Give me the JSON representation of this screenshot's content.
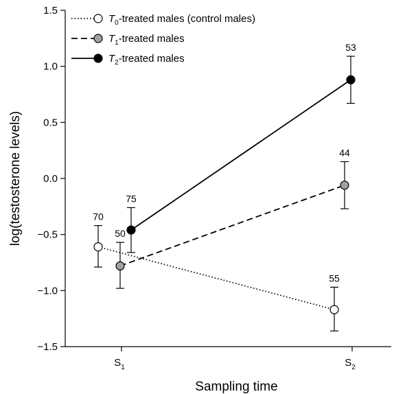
{
  "chart_data": {
    "type": "line",
    "title": "",
    "xlabel": "Sampling time",
    "ylabel": "log(testosterone levels)",
    "ylim": [
      -1.5,
      1.5
    ],
    "yticks": [
      1.5,
      1.0,
      0.5,
      0.0,
      -0.5,
      -1.0,
      -1.5
    ],
    "ytick_labels": [
      "1.5",
      "1.0",
      "0.5",
      "0.0",
      "−0.5",
      "−1.0",
      "−1.5"
    ],
    "categories": [
      {
        "main": "S",
        "sub": "1"
      },
      {
        "main": "S",
        "sub": "2"
      }
    ],
    "legend_position": "top-left",
    "series": [
      {
        "name_italic": "T",
        "name_sub": "0",
        "name_rest": "-treated males (control males)",
        "line_style": "dotted",
        "marker_fill": "#ffffff",
        "points": [
          {
            "sample": "S1",
            "y": -0.61,
            "err_low": -0.79,
            "err_high": -0.42,
            "n": "70"
          },
          {
            "sample": "S2",
            "y": -1.17,
            "err_low": -1.36,
            "err_high": -0.97,
            "n": "55"
          }
        ]
      },
      {
        "name_italic": "T",
        "name_sub": "1",
        "name_rest": "-treated males",
        "line_style": "dashed",
        "marker_fill": "#a0a0a0",
        "points": [
          {
            "sample": "S1",
            "y": -0.78,
            "err_low": -0.98,
            "err_high": -0.57,
            "n": "50"
          },
          {
            "sample": "S2",
            "y": -0.06,
            "err_low": -0.27,
            "err_high": 0.15,
            "n": "44"
          }
        ]
      },
      {
        "name_italic": "T",
        "name_sub": "2",
        "name_rest": "-treated males",
        "line_style": "solid",
        "marker_fill": "#000000",
        "points": [
          {
            "sample": "S1",
            "y": -0.46,
            "err_low": -0.66,
            "err_high": -0.26,
            "n": "75"
          },
          {
            "sample": "S2",
            "y": 0.88,
            "err_low": 0.67,
            "err_high": 1.09,
            "n": "53"
          }
        ]
      }
    ]
  }
}
